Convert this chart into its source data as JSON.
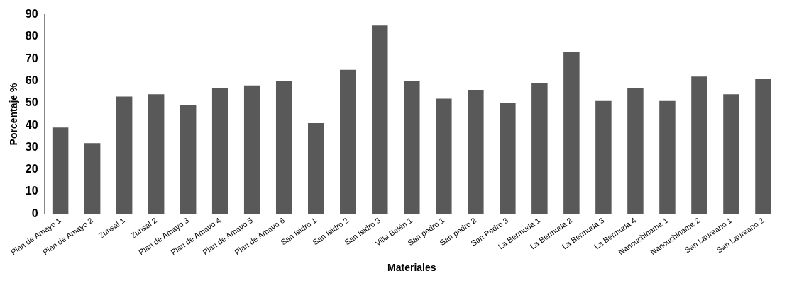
{
  "chart_data": {
    "type": "bar",
    "xlabel": "Materiales",
    "ylabel": "Porcentaje %",
    "categories": [
      "Plan de Amayo 1",
      "Plan de Amayo 2",
      "Zunsal 1",
      "Zunsal 2",
      "Plan de Amayo 3",
      "Plan de Amayo 4",
      "Plan de Amayo 5",
      "Plan de Amayo 6",
      "San Isidro 1",
      "San Isidro 2",
      "San Isidro 3",
      "Villa Belén 1",
      "San pedro 1",
      "San pedro 2",
      "San Pedro 3",
      "La Bermuda 1",
      "La Bermuda 2",
      "La Bermuda 3",
      "La Bermuda 4",
      "Nancuchiname 1",
      "Nancuchiname 2",
      "San Laureano 1",
      "San Laureano 2"
    ],
    "values": [
      39,
      32,
      53,
      54,
      49,
      57,
      58,
      60,
      41,
      65,
      85,
      60,
      52,
      56,
      50,
      59,
      73,
      51,
      57,
      51,
      62,
      54,
      61
    ],
    "color": "#595959",
    "ylim": [
      0,
      90
    ],
    "yticks": [
      0,
      10,
      20,
      30,
      40,
      50,
      60,
      70,
      80,
      90
    ],
    "grid": false,
    "legend": false
  }
}
